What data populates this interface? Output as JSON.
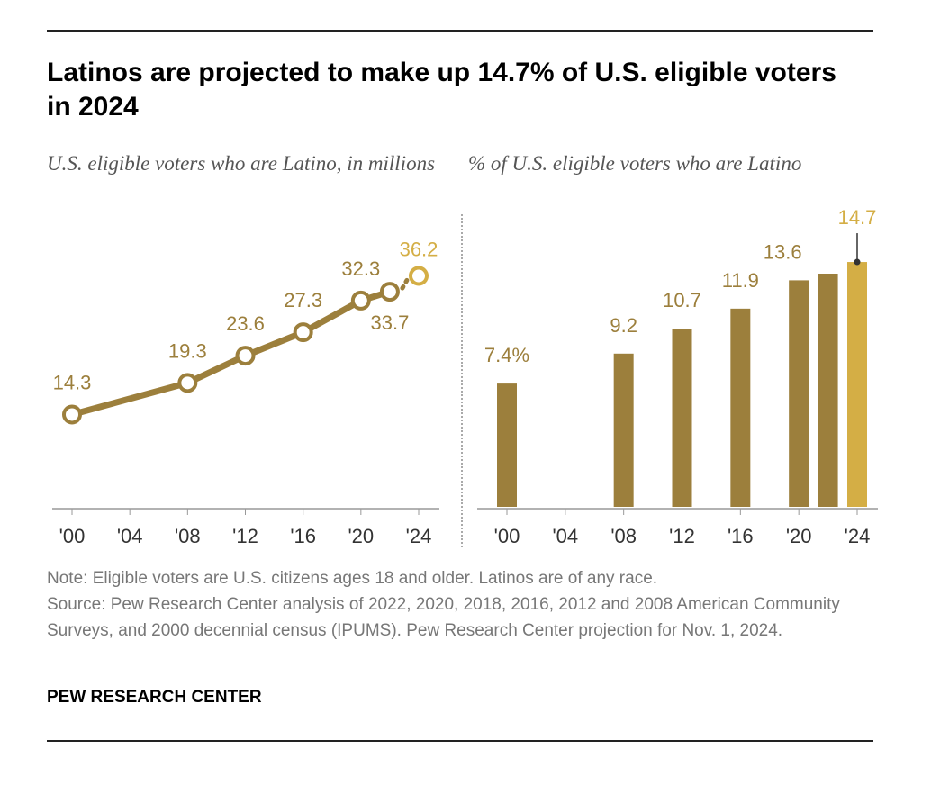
{
  "title": "Latinos are projected to make up 14.7% of U.S. eligible voters in 2024",
  "colors": {
    "main": "#9c7f3c",
    "projection": "#d4ae45"
  },
  "chart_data": [
    {
      "type": "line",
      "title": "U.S. eligible voters who are Latino, in millions",
      "x_ticks": [
        "'00",
        "'04",
        "'08",
        "'12",
        "'16",
        "'20",
        "'24"
      ],
      "x": [
        2000,
        2008,
        2012,
        2016,
        2020,
        2022,
        2024
      ],
      "values": [
        14.3,
        19.3,
        23.6,
        27.3,
        32.3,
        33.7,
        36.2
      ],
      "labels": [
        "14.3",
        "19.3",
        "23.6",
        "27.3",
        "32.3",
        "33.7",
        "36.2"
      ],
      "projected": [
        false,
        false,
        false,
        false,
        false,
        false,
        true
      ],
      "xlim": [
        2000,
        2024
      ],
      "ylim": [
        0,
        40
      ],
      "grid": false
    },
    {
      "type": "bar",
      "title": "% of U.S. eligible voters who are Latino",
      "x_ticks": [
        "'00",
        "'04",
        "'08",
        "'12",
        "'16",
        "'20",
        "'24"
      ],
      "x": [
        2000,
        2008,
        2012,
        2016,
        2020,
        2022,
        2024
      ],
      "values": [
        7.4,
        9.2,
        10.7,
        11.9,
        13.6,
        14.0,
        14.7
      ],
      "labels": [
        "7.4%",
        "9.2",
        "10.7",
        "11.9",
        "13.6",
        "",
        "14.7"
      ],
      "projected": [
        false,
        false,
        false,
        false,
        false,
        false,
        true
      ],
      "ylim": [
        0,
        16
      ],
      "grid": false
    }
  ],
  "note": "Note: Eligible voters are U.S. citizens ages 18 and older. Latinos are of any race.",
  "source": "Source: Pew Research Center analysis of 2022, 2020, 2018, 2016, 2012 and 2008 American Community Surveys, and 2000 decennial census (IPUMS). Pew Research Center projection for Nov. 1, 2024.",
  "brand": "PEW RESEARCH CENTER"
}
